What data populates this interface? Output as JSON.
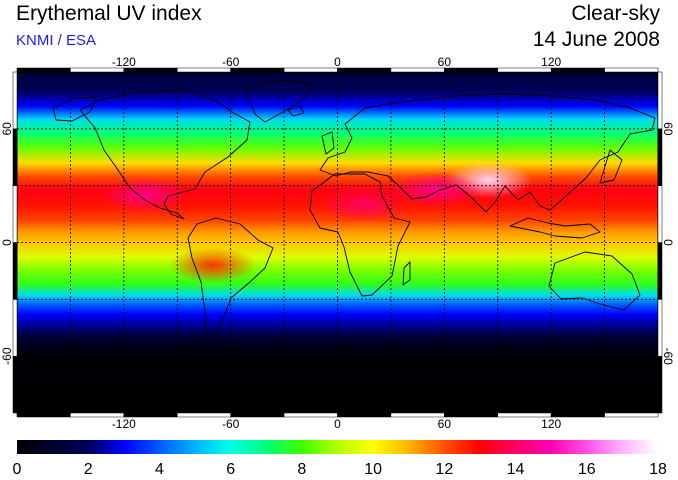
{
  "header": {
    "title": "Erythemal UV index",
    "subtitle": "KNMI / ESA",
    "mode": "Clear-sky",
    "date": "14 June 2008"
  },
  "map": {
    "projection": "equirectangular",
    "lon_range": [
      -180,
      180
    ],
    "lat_range": [
      -90,
      90
    ],
    "grid": true,
    "lon_ticks": [
      -120,
      -60,
      0,
      60,
      120
    ],
    "lon_tick_labels": [
      "-120",
      "-60",
      "0",
      "60",
      "120"
    ],
    "lat_ticks": [
      60,
      0,
      -60
    ],
    "lat_tick_labels": [
      "60",
      "0",
      "-60"
    ],
    "grid_lons": [
      -150,
      -120,
      -90,
      -60,
      -30,
      0,
      30,
      60,
      90,
      120,
      150
    ],
    "grid_lats": [
      60,
      30,
      0,
      -30,
      -60
    ],
    "uv_by_latitude": [
      [
        90,
        1.2
      ],
      [
        80,
        2.0
      ],
      [
        72,
        3.0
      ],
      [
        65,
        5.5
      ],
      [
        58,
        7.0
      ],
      [
        50,
        8.3
      ],
      [
        42,
        10.5
      ],
      [
        35,
        12.0
      ],
      [
        28,
        13.2
      ],
      [
        20,
        12.8
      ],
      [
        12,
        12.2
      ],
      [
        5,
        11.2
      ],
      [
        0,
        10.8
      ],
      [
        -8,
        9.5
      ],
      [
        -15,
        8.5
      ],
      [
        -22,
        7.8
      ],
      [
        -28,
        5.5
      ],
      [
        -32,
        4.2
      ],
      [
        -38,
        3.0
      ],
      [
        -45,
        2.2
      ],
      [
        -50,
        1.2
      ],
      [
        -55,
        0.5
      ],
      [
        -62,
        0.1
      ],
      [
        -90,
        0.0
      ]
    ],
    "hotspots": [
      {
        "lat": 33,
        "lon": 85,
        "uv": 17.5
      },
      {
        "lat": 28,
        "lon": 55,
        "uv": 14.5
      },
      {
        "lat": 25,
        "lon": -108,
        "uv": 14.5
      },
      {
        "lat": 20,
        "lon": 15,
        "uv": 14.0
      },
      {
        "lat": -12,
        "lon": -70,
        "uv": 12.5
      }
    ]
  },
  "colorbar": {
    "min": 0,
    "max": 18,
    "tick_values": [
      0,
      2,
      4,
      6,
      8,
      10,
      12,
      14,
      16,
      18
    ],
    "tick_labels": [
      "0",
      "2",
      "4",
      "6",
      "8",
      "10",
      "12",
      "14",
      "16",
      "18"
    ],
    "stops": [
      [
        0,
        "#000000"
      ],
      [
        2,
        "#00005a"
      ],
      [
        3,
        "#0000ff"
      ],
      [
        5,
        "#00b4ff"
      ],
      [
        6,
        "#00ffe6"
      ],
      [
        7,
        "#00ff78"
      ],
      [
        8,
        "#3cff00"
      ],
      [
        9,
        "#b4ff00"
      ],
      [
        10,
        "#ffff00"
      ],
      [
        11,
        "#ffb400"
      ],
      [
        12,
        "#ff5000"
      ],
      [
        13,
        "#ff0000"
      ],
      [
        14,
        "#ff0064"
      ],
      [
        15,
        "#ff00b4"
      ],
      [
        16,
        "#ff50e6"
      ],
      [
        17,
        "#ffb4ff"
      ],
      [
        18,
        "#ffffff"
      ]
    ]
  }
}
